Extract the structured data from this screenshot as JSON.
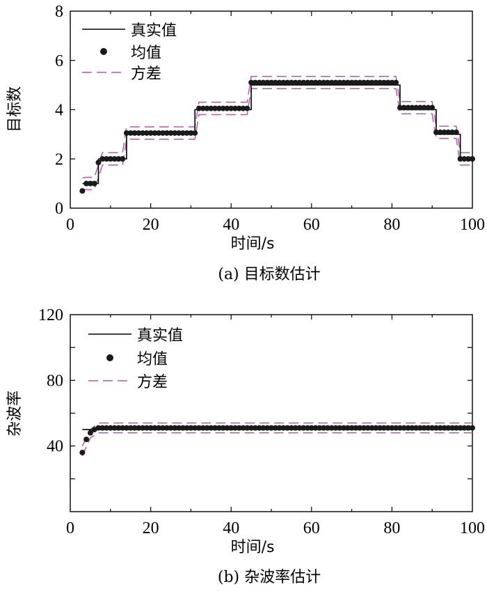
{
  "chart_data": [
    {
      "id": "a",
      "type": "line",
      "caption": "(a) 目标数估计",
      "xlabel": "时间/s",
      "ylabel": "目标数",
      "xlim": [
        0,
        100
      ],
      "ylim": [
        0,
        8
      ],
      "xticks": [
        0,
        20,
        40,
        60,
        80,
        100
      ],
      "yticks": [
        0,
        2,
        4,
        6,
        8
      ],
      "yticks_labeled": [
        0,
        2,
        4,
        6,
        8
      ],
      "legend": [
        "真实值",
        "均值",
        "方差"
      ],
      "legend_position": "top-left",
      "true_value_steps": [
        [
          3,
          1
        ],
        [
          7,
          2
        ],
        [
          14,
          3
        ],
        [
          31,
          4
        ],
        [
          45,
          5
        ],
        [
          82,
          4
        ],
        [
          91,
          3
        ],
        [
          97,
          2
        ],
        [
          100,
          2
        ]
      ],
      "mean_segments": [
        {
          "x_start": 4,
          "x_end": 6,
          "value": 1.0
        },
        {
          "x_start": 8,
          "x_end": 13,
          "value": 2.0
        },
        {
          "x_start": 14,
          "x_end": 31,
          "value": 3.05
        },
        {
          "x_start": 32,
          "x_end": 44,
          "value": 4.05
        },
        {
          "x_start": 45,
          "x_end": 81,
          "value": 5.1
        },
        {
          "x_start": 82,
          "x_end": 90,
          "value": 4.08
        },
        {
          "x_start": 91,
          "x_end": 96,
          "value": 3.08
        },
        {
          "x_start": 97,
          "x_end": 100,
          "value": 2.0
        }
      ],
      "mean_transition_points": [
        [
          3,
          0.7
        ],
        [
          7,
          1.85
        ]
      ],
      "variance_band_halfwidth": 0.25,
      "colors": {
        "true": "#000000",
        "mean": "#1a1a1a",
        "variance": "#b05aa8"
      }
    },
    {
      "id": "b",
      "type": "line",
      "caption": "(b) 杂波率估计",
      "xlabel": "时间/s",
      "ylabel": "杂波率",
      "xlim": [
        0,
        100
      ],
      "ylim": [
        0,
        120
      ],
      "xticks": [
        0,
        20,
        40,
        60,
        80,
        100
      ],
      "yticks": [
        0,
        20,
        40,
        60,
        80,
        100,
        120
      ],
      "yticks_labeled": [
        40,
        80,
        120
      ],
      "legend": [
        "真实值",
        "均值",
        "方差"
      ],
      "legend_position": "top-left",
      "true_value": 50,
      "true_x_range": [
        3,
        100
      ],
      "mean_start_points": [
        [
          3,
          36
        ],
        [
          4,
          44
        ],
        [
          5,
          48
        ],
        [
          6,
          50
        ],
        [
          7,
          51
        ]
      ],
      "mean_steady_value": 51,
      "mean_steady_range": [
        8,
        100
      ],
      "variance_upper": 54,
      "variance_lower": 48,
      "colors": {
        "true": "#000000",
        "mean": "#1a1a1a",
        "variance": "#b05aa8"
      }
    }
  ]
}
